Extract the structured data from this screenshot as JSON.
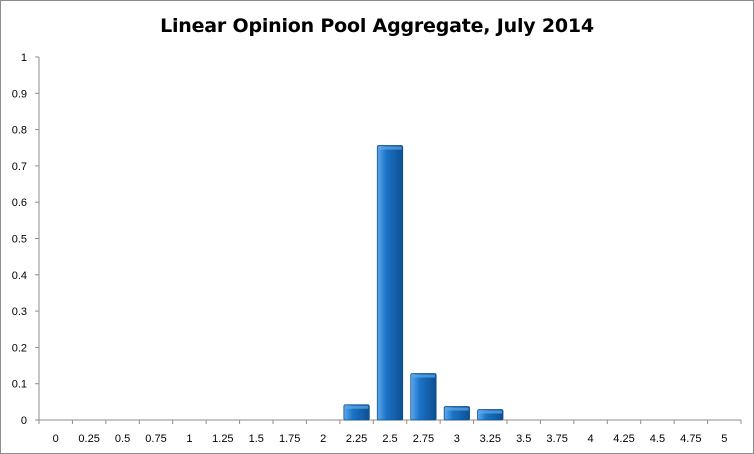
{
  "chart_data": {
    "type": "bar",
    "title": "Linear Opinion Pool Aggregate, July 2014",
    "xlabel": "",
    "ylabel": "",
    "categories": [
      "0",
      "0.25",
      "0.5",
      "0.75",
      "1",
      "1.25",
      "1.5",
      "1.75",
      "2",
      "2.25",
      "2.5",
      "2.75",
      "3",
      "3.25",
      "3.5",
      "3.75",
      "4",
      "4.25",
      "4.5",
      "4.75",
      "5"
    ],
    "values": [
      0,
      0,
      0,
      0,
      0,
      0,
      0,
      0,
      0,
      0.042,
      0.756,
      0.128,
      0.037,
      0.029,
      0,
      0,
      0,
      0,
      0,
      0,
      0
    ],
    "y_ticks": [
      "0",
      "0.1",
      "0.2",
      "0.3",
      "0.4",
      "0.5",
      "0.6",
      "0.7",
      "0.8",
      "0.9",
      "1"
    ],
    "ylim": [
      0,
      1
    ],
    "grid": false,
    "legend": "none",
    "colors": {
      "bar": "#1b73c8",
      "bar_light": "#5fa9ea",
      "bar_dark": "#0d4f91",
      "axis": "#8c8c8c"
    }
  }
}
